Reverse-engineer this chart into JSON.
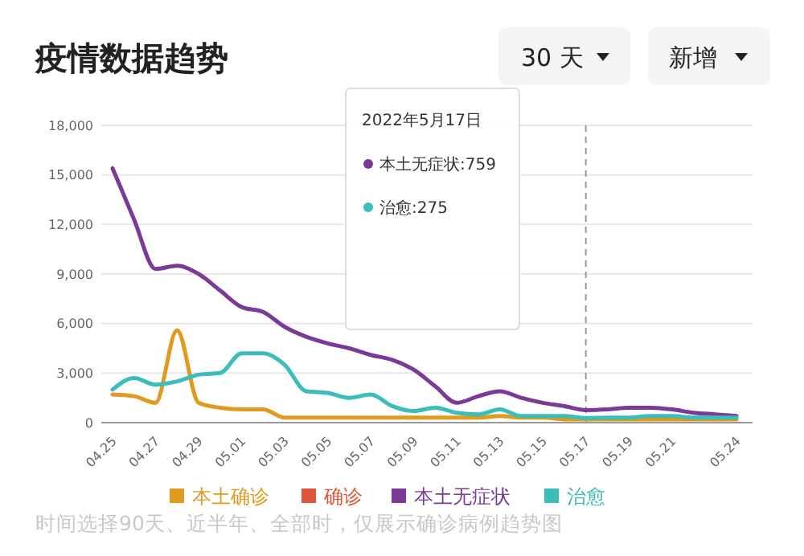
{
  "chart_data": {
    "type": "line",
    "title": "疫情数据趋势",
    "categories": [
      "04.25",
      null,
      "04.27",
      null,
      "04.29",
      null,
      "05.01",
      null,
      "05.03",
      null,
      "05.05",
      null,
      "05.07",
      null,
      "05.09",
      null,
      "05.11",
      null,
      "05.13",
      null,
      "05.15",
      null,
      "05.17",
      null,
      "05.19",
      null,
      "05.21",
      null,
      null,
      "05.24"
    ],
    "series": [
      {
        "name": "本土确诊",
        "color": "#e09a1e",
        "values": [
          1700,
          1600,
          1200,
          5600,
          1200,
          900,
          800,
          800,
          300,
          300,
          300,
          300,
          300,
          300,
          300,
          300,
          300,
          300,
          400,
          300,
          300,
          200,
          200,
          200,
          200,
          200,
          200,
          200,
          200,
          200
        ]
      },
      {
        "name": "确诊",
        "color": "#e0553a",
        "values": [
          null,
          null,
          null,
          null,
          null,
          null,
          null,
          null,
          null,
          null,
          null,
          null,
          null,
          null,
          null,
          null,
          null,
          null,
          null,
          null,
          null,
          null,
          null,
          null,
          null,
          null,
          null,
          null,
          null,
          null
        ]
      },
      {
        "name": "本土无症状",
        "color": "#7b3a97",
        "values": [
          15400,
          12300,
          9300,
          9500,
          9000,
          8000,
          7000,
          6700,
          5800,
          5200,
          4800,
          4500,
          4100,
          3800,
          3200,
          2200,
          1200,
          1600,
          1900,
          1500,
          1200,
          1000,
          759,
          800,
          900,
          900,
          800,
          600,
          500,
          400
        ]
      },
      {
        "name": "治愈",
        "color": "#3bbdbb",
        "values": [
          2000,
          2700,
          2300,
          2500,
          2900,
          3000,
          4200,
          4200,
          3500,
          1900,
          1800,
          1500,
          1700,
          1000,
          700,
          900,
          600,
          500,
          800,
          400,
          400,
          400,
          275,
          300,
          300,
          400,
          400,
          300,
          300,
          300
        ]
      }
    ],
    "ylim": [
      0,
      18000
    ],
    "yticks": [
      {
        "value": 0,
        "label": "0"
      },
      {
        "value": 3000,
        "label": "3,000"
      },
      {
        "value": 6000,
        "label": "6,000"
      },
      {
        "value": 9000,
        "label": "9,000"
      },
      {
        "value": 12000,
        "label": "12,000"
      },
      {
        "value": 15000,
        "label": "15,000"
      },
      {
        "value": 18000,
        "label": "18,000"
      }
    ],
    "grid": "y",
    "legend": "bottom",
    "marker": "none",
    "line_style": "solid",
    "ref_lines": [
      {
        "axis": "x",
        "value": "05.17",
        "color": "#999999",
        "line_style": "dashed"
      }
    ],
    "annotations": [
      "30 天",
      "新增",
      "2022年5月17日",
      "本土无症状:759",
      "治愈:275",
      "时间选择90天、近半年、全部时，仅展示确诊病例趋势图"
    ]
  }
}
